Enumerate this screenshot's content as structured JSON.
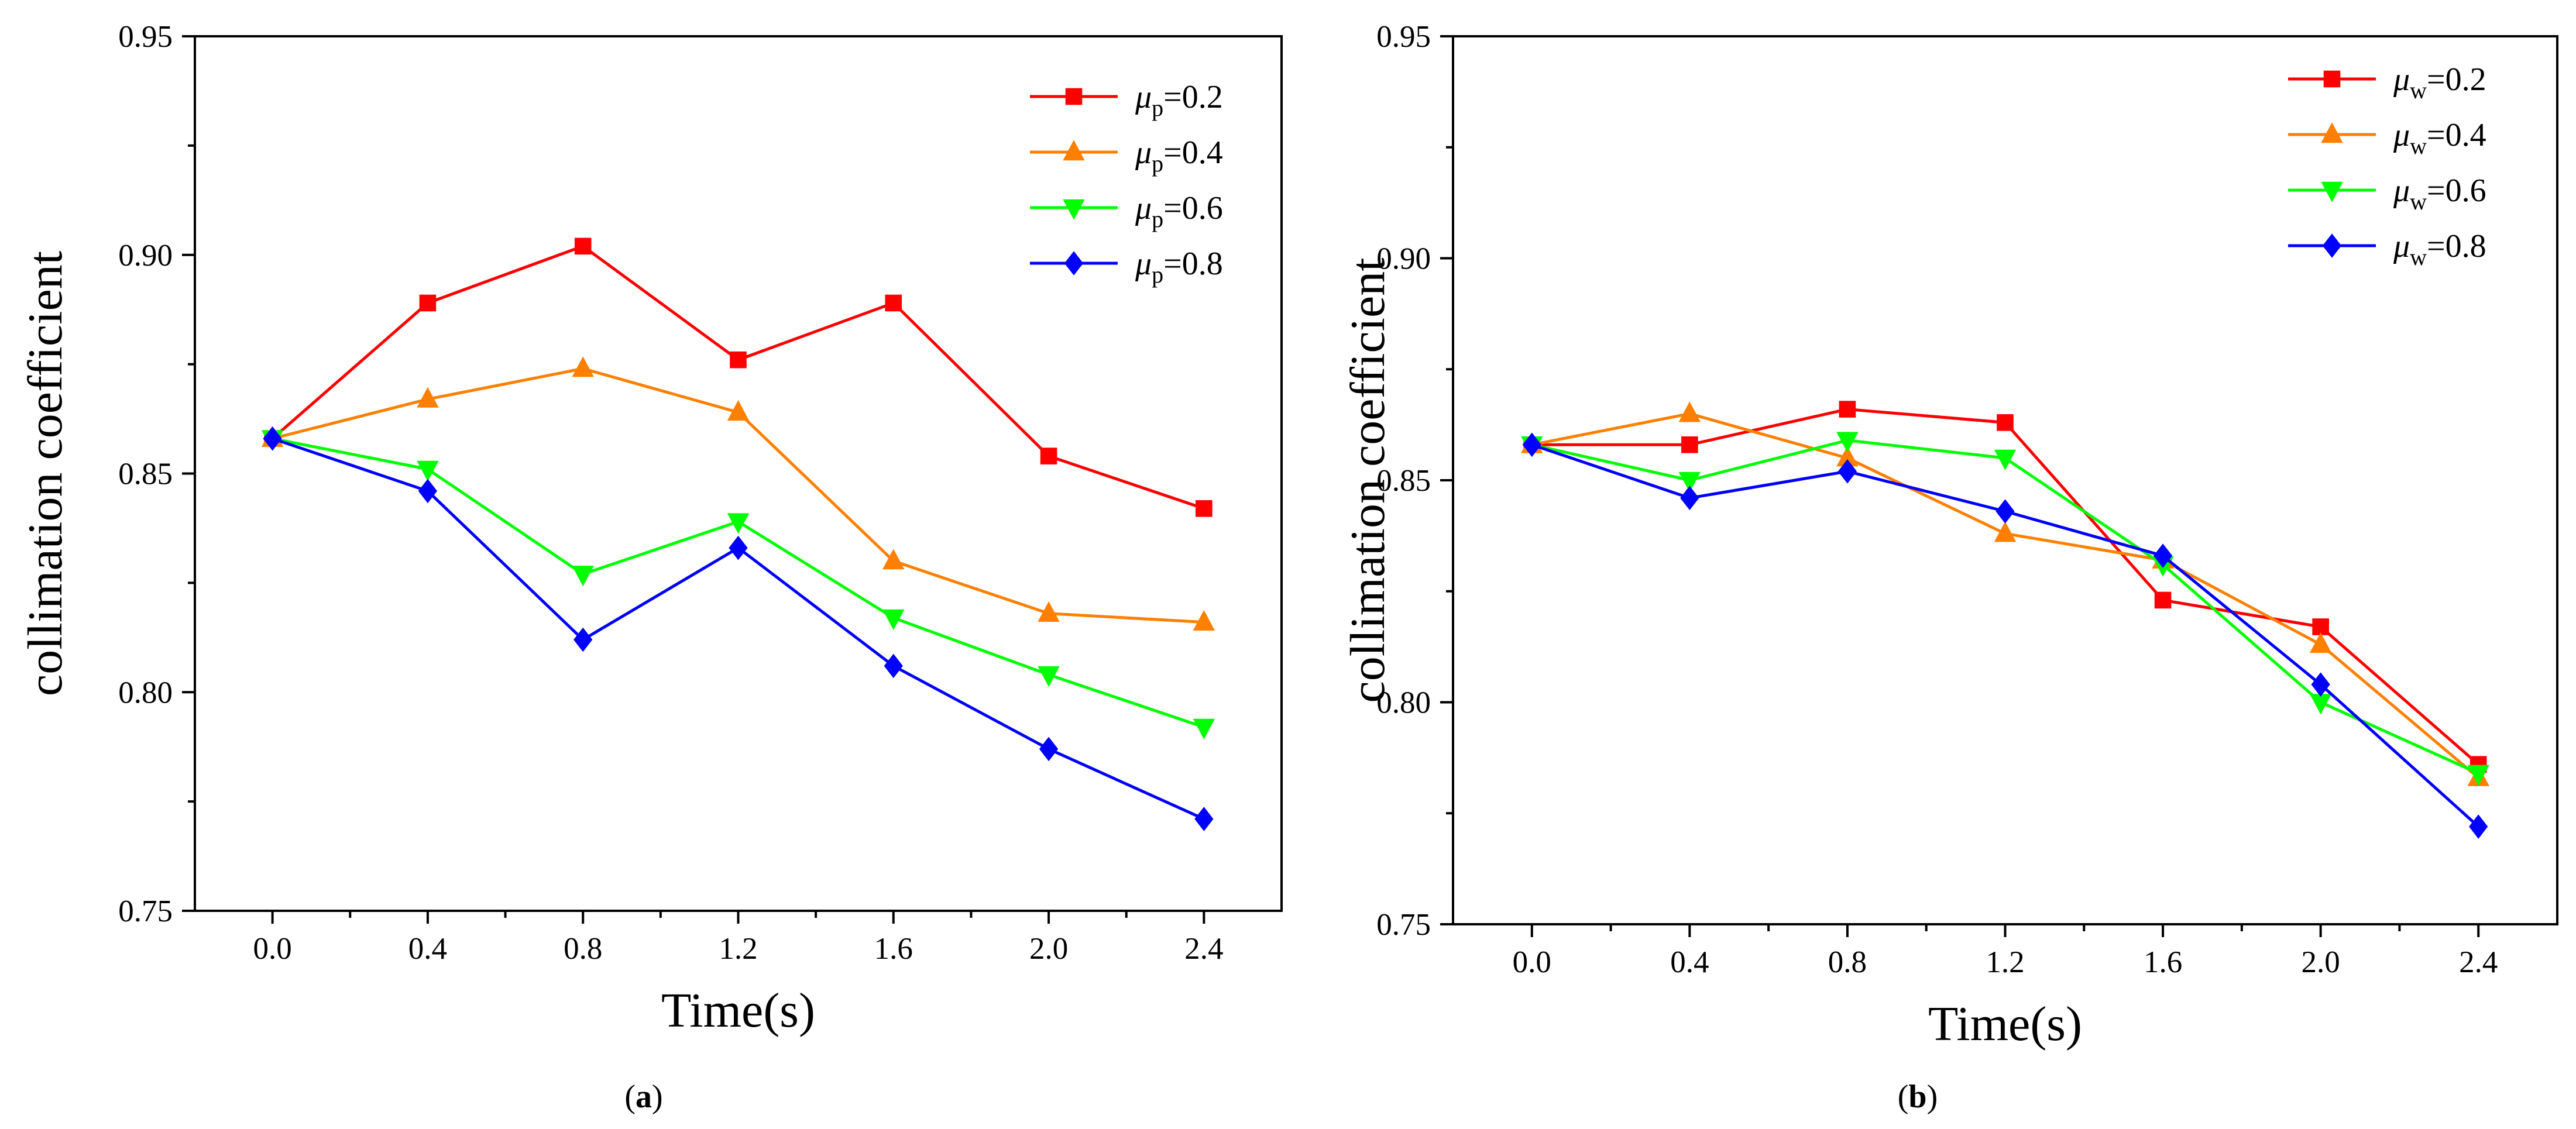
{
  "chart_data": [
    {
      "type": "line",
      "panel_label": "a",
      "xlabel": "Time(s)",
      "ylabel": "collimation coefficient",
      "xlim": [
        -0.2,
        2.6
      ],
      "ylim": [
        0.75,
        0.95
      ],
      "xticks": [
        "0.0",
        "0.4",
        "0.8",
        "1.2",
        "1.6",
        "2.0",
        "2.4"
      ],
      "yticks": [
        "0.75",
        "0.80",
        "0.85",
        "0.90",
        "0.95"
      ],
      "legend_position": "top-right",
      "legend_symbol": "μ",
      "legend_subscript": "p",
      "x": [
        0.0,
        0.4,
        0.8,
        1.2,
        1.6,
        2.0,
        2.4
      ],
      "series": [
        {
          "name": "=0.2",
          "color": "#ff0000",
          "marker": "square",
          "values": [
            0.858,
            0.889,
            0.902,
            0.876,
            0.889,
            0.854,
            0.842
          ]
        },
        {
          "name": "=0.4",
          "color": "#ff8000",
          "marker": "triangle-up",
          "values": [
            0.858,
            0.867,
            0.874,
            0.864,
            0.83,
            0.818,
            0.816
          ]
        },
        {
          "name": "=0.6",
          "color": "#00ff00",
          "marker": "triangle-down",
          "values": [
            0.858,
            0.851,
            0.827,
            0.839,
            0.817,
            0.804,
            0.792
          ]
        },
        {
          "name": "=0.8",
          "color": "#0000ff",
          "marker": "diamond",
          "values": [
            0.858,
            0.846,
            0.812,
            0.833,
            0.806,
            0.787,
            0.771
          ]
        }
      ]
    },
    {
      "type": "line",
      "panel_label": "b",
      "xlabel": "Time(s)",
      "ylabel": "collimation coefficient",
      "xlim": [
        -0.2,
        2.6
      ],
      "ylim": [
        0.75,
        0.95
      ],
      "xticks": [
        "0.0",
        "0.4",
        "0.8",
        "1.2",
        "1.6",
        "2.0",
        "2.4"
      ],
      "yticks": [
        "0.75",
        "0.80",
        "0.85",
        "0.90",
        "0.95"
      ],
      "legend_position": "top-right",
      "legend_symbol": "μ",
      "legend_subscript": "w",
      "x": [
        0.0,
        0.4,
        0.8,
        1.2,
        1.6,
        2.0,
        2.4
      ],
      "series": [
        {
          "name": "=0.2",
          "color": "#ff0000",
          "marker": "square",
          "values": [
            0.858,
            0.858,
            0.866,
            0.863,
            0.823,
            0.817,
            0.786
          ]
        },
        {
          "name": "=0.4",
          "color": "#ff8000",
          "marker": "triangle-up",
          "values": [
            0.858,
            0.865,
            0.855,
            0.838,
            0.832,
            0.813,
            0.783
          ]
        },
        {
          "name": "=0.6",
          "color": "#00ff00",
          "marker": "triangle-down",
          "values": [
            0.858,
            0.85,
            0.859,
            0.855,
            0.831,
            0.8,
            0.784
          ]
        },
        {
          "name": "=0.8",
          "color": "#0000ff",
          "marker": "diamond",
          "values": [
            0.858,
            0.846,
            0.852,
            0.843,
            0.833,
            0.804,
            0.772
          ]
        }
      ]
    }
  ]
}
